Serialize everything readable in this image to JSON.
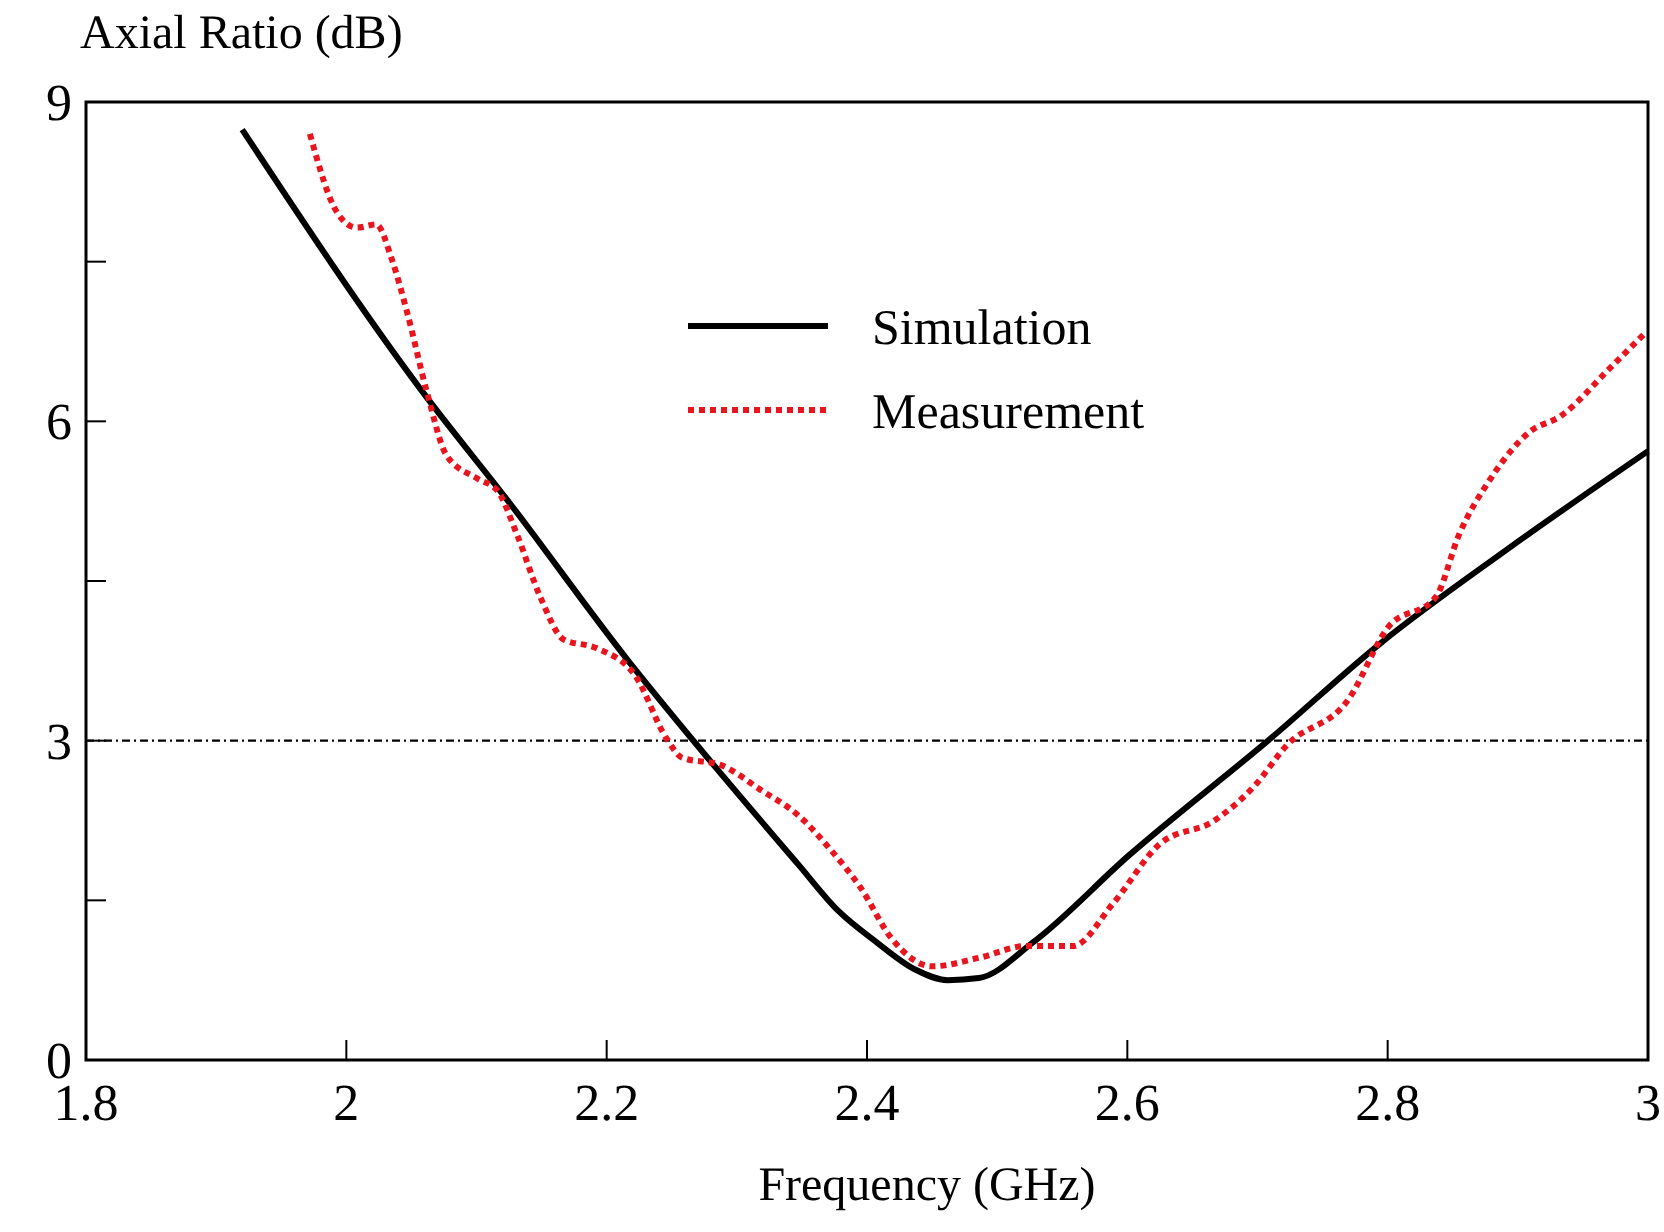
{
  "chart_data": {
    "type": "line",
    "xlabel": "Frequency (GHz)",
    "ylabel": "Axial Ratio (dB)",
    "xlim": [
      1.8,
      3
    ],
    "xticks": [
      1.8,
      2,
      2.2,
      2.4,
      2.6,
      2.8,
      3
    ],
    "ylim": [
      0,
      9
    ],
    "yticks": [
      0,
      {
        "value": 1.5,
        "label": null
      },
      3,
      {
        "value": 4.5,
        "label": null
      },
      6,
      {
        "value": 7.5,
        "label": null
      },
      9
    ],
    "grid": false,
    "legend": "top right",
    "marker": "none",
    "ref_lines": [
      {
        "axis": "y",
        "value": 3,
        "color": "#000000",
        "line_style": "dashdot"
      }
    ],
    "series": [
      {
        "name": "Simulation",
        "color": "#000000",
        "line_style": "solid",
        "x": [
          1.92,
          2.059,
          2.125,
          2.216,
          2.27,
          2.347,
          2.378,
          2.407,
          2.437,
          2.462,
          2.486,
          2.528,
          2.601,
          2.71,
          2.794,
          2.891,
          3.0
        ],
        "values": [
          8.74,
          6.27,
          5.24,
          3.76,
          2.95,
          1.84,
          1.4,
          1.11,
          0.85,
          0.75,
          0.77,
          1.11,
          1.92,
          3.02,
          3.91,
          4.79,
          5.72
        ]
      },
      {
        "name": "Measurement",
        "color": "#e8141e",
        "line_style": "dotted",
        "x": [
          1.972,
          1.993,
          2.008,
          2.023,
          2.035,
          2.047,
          2.062,
          2.077,
          2.101,
          2.116,
          2.131,
          2.149,
          2.167,
          2.192,
          2.222,
          2.246,
          2.258,
          2.288,
          2.318,
          2.348,
          2.371,
          2.395,
          2.419,
          2.45,
          2.486,
          2.522,
          2.558,
          2.589,
          2.625,
          2.667,
          2.698,
          2.722,
          2.77,
          2.8,
          2.837,
          2.855,
          2.879,
          2.909,
          2.933,
          2.97,
          2.997
        ],
        "values": [
          8.7,
          7.96,
          7.82,
          7.85,
          7.52,
          7.01,
          6.27,
          5.68,
          5.46,
          5.35,
          4.94,
          4.35,
          3.95,
          3.87,
          3.61,
          3.02,
          2.84,
          2.77,
          2.54,
          2.29,
          1.99,
          1.62,
          1.14,
          0.88,
          0.96,
          1.07,
          1.07,
          1.47,
          2.03,
          2.25,
          2.58,
          2.95,
          3.39,
          4.06,
          4.35,
          4.94,
          5.46,
          5.9,
          6.05,
          6.49,
          6.82
        ]
      }
    ]
  }
}
